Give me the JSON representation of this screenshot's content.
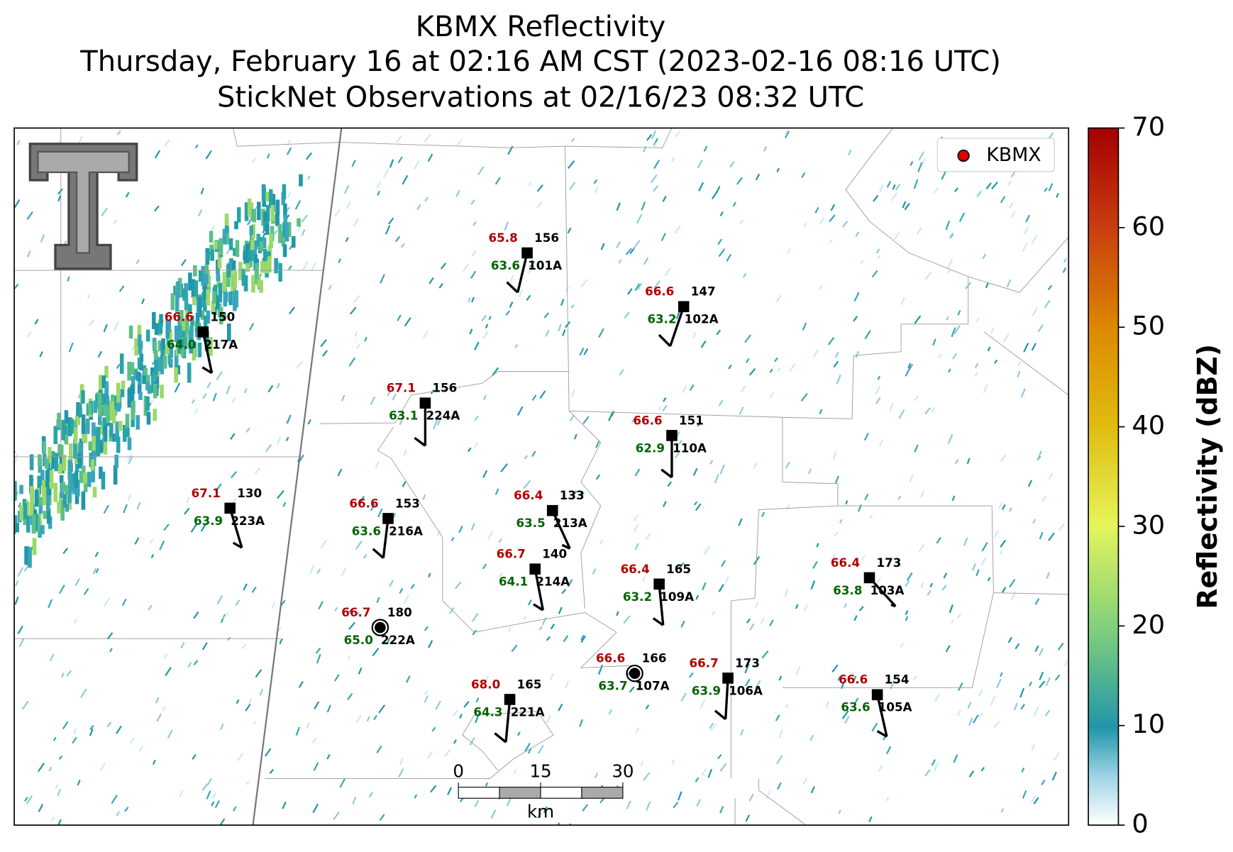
{
  "title_lines": [
    "KBMX Reflectivity",
    "Thursday, February 16 at 02:16 AM CST (2023-02-16 08:16 UTC)",
    "StickNet Observations at 02/16/23 08:32 UTC"
  ],
  "legend": {
    "label": "KBMX",
    "color": "#e00000"
  },
  "colorbar": {
    "label": "Reflectivity (dBZ)",
    "lim": [
      0,
      70
    ],
    "ticks": [
      0,
      10,
      20,
      30,
      40,
      50,
      60,
      70
    ]
  },
  "scale_bar": {
    "ticks": [
      0,
      15,
      30
    ],
    "unit": "km"
  },
  "stations": [
    {
      "id": "101A",
      "temp": "65.8",
      "dew": "63.6",
      "value": "156"
    },
    {
      "id": "102A",
      "temp": "66.6",
      "dew": "63.2",
      "value": "147"
    },
    {
      "id": "217A",
      "temp": "66.6",
      "dew": "64.0",
      "value": "150"
    },
    {
      "id": "224A",
      "temp": "67.1",
      "dew": "63.1",
      "value": "156"
    },
    {
      "id": "110A",
      "temp": "66.6",
      "dew": "62.9",
      "value": "151"
    },
    {
      "id": "223A",
      "temp": "67.1",
      "dew": "63.9",
      "value": "130"
    },
    {
      "id": "216A",
      "temp": "66.6",
      "dew": "63.6",
      "value": "153"
    },
    {
      "id": "213A",
      "temp": "66.4",
      "dew": "63.5",
      "value": "133"
    },
    {
      "id": "214A",
      "temp": "66.7",
      "dew": "64.1",
      "value": "140"
    },
    {
      "id": "109A",
      "temp": "66.4",
      "dew": "63.2",
      "value": "165"
    },
    {
      "id": "103A",
      "temp": "66.4",
      "dew": "63.8",
      "value": "173"
    },
    {
      "id": "222A",
      "temp": "66.7",
      "dew": "65.0",
      "value": "180"
    },
    {
      "id": "107A",
      "temp": "66.6",
      "dew": "63.7",
      "value": "166"
    },
    {
      "id": "221A",
      "temp": "68.0",
      "dew": "64.3",
      "value": "165"
    },
    {
      "id": "106A",
      "temp": "66.7",
      "dew": "63.9",
      "value": "173"
    },
    {
      "id": "105A",
      "temp": "66.6",
      "dew": "63.6",
      "value": "154"
    }
  ]
}
